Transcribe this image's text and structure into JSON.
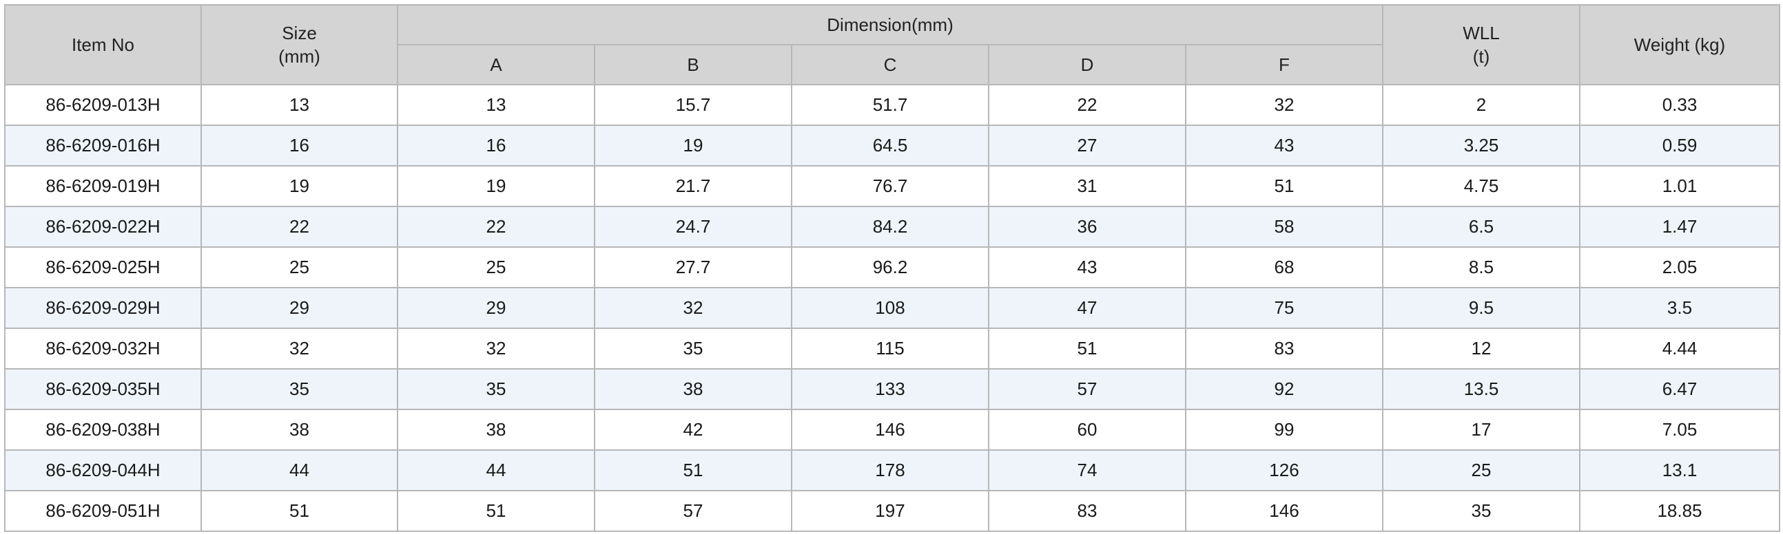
{
  "table": {
    "headers": {
      "item_no": "Item No",
      "size_line1": "Size",
      "size_line2": "(mm)",
      "dimension": "Dimension(mm)",
      "dim_a": "A",
      "dim_b": "B",
      "dim_c": "C",
      "dim_d": "D",
      "dim_f": "F",
      "wll_line1": "WLL",
      "wll_line2": "(t)",
      "weight": "Weight (kg)"
    },
    "rows": [
      [
        "86-6209-013H",
        "13",
        "13",
        "15.7",
        "51.7",
        "22",
        "32",
        "2",
        "0.33"
      ],
      [
        "86-6209-016H",
        "16",
        "16",
        "19",
        "64.5",
        "27",
        "43",
        "3.25",
        "0.59"
      ],
      [
        "86-6209-019H",
        "19",
        "19",
        "21.7",
        "76.7",
        "31",
        "51",
        "4.75",
        "1.01"
      ],
      [
        "86-6209-022H",
        "22",
        "22",
        "24.7",
        "84.2",
        "36",
        "58",
        "6.5",
        "1.47"
      ],
      [
        "86-6209-025H",
        "25",
        "25",
        "27.7",
        "96.2",
        "43",
        "68",
        "8.5",
        "2.05"
      ],
      [
        "86-6209-029H",
        "29",
        "29",
        "32",
        "108",
        "47",
        "75",
        "9.5",
        "3.5"
      ],
      [
        "86-6209-032H",
        "32",
        "32",
        "35",
        "115",
        "51",
        "83",
        "12",
        "4.44"
      ],
      [
        "86-6209-035H",
        "35",
        "35",
        "38",
        "133",
        "57",
        "92",
        "13.5",
        "6.47"
      ],
      [
        "86-6209-038H",
        "38",
        "38",
        "42",
        "146",
        "60",
        "99",
        "17",
        "7.05"
      ],
      [
        "86-6209-044H",
        "44",
        "44",
        "51",
        "178",
        "74",
        "126",
        "25",
        "13.1"
      ],
      [
        "86-6209-051H",
        "51",
        "51",
        "57",
        "197",
        "83",
        "146",
        "35",
        "18.85"
      ]
    ]
  }
}
